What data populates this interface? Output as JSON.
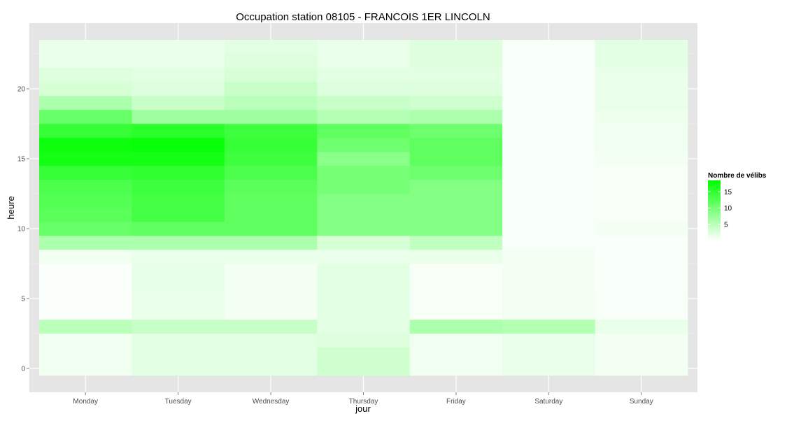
{
  "chart_data": {
    "type": "heatmap",
    "title": "Occupation station 08105 - FRANCOIS 1ER LINCOLN",
    "xlabel": "jour",
    "ylabel": "heure",
    "x_categories": [
      "Monday",
      "Tuesday",
      "Wednesday",
      "Thursday",
      "Friday",
      "Saturday",
      "Sunday"
    ],
    "y_hours": [
      0,
      1,
      2,
      3,
      4,
      5,
      6,
      7,
      8,
      9,
      10,
      11,
      12,
      13,
      14,
      15,
      16,
      17,
      18,
      19,
      20,
      21,
      22,
      23
    ],
    "y_ticks": [
      0,
      5,
      10,
      15,
      20
    ],
    "ylim": [
      -0.5,
      23.5
    ],
    "grid": true,
    "legend": {
      "title": "Nombre de vélibs",
      "ticks": [
        5,
        10,
        15
      ],
      "range": [
        0,
        18.5
      ],
      "color_low": "#ffffff",
      "color_high": "#00ff00",
      "position": "right"
    },
    "values": {
      "Monday": [
        1,
        1,
        1,
        5,
        0.3,
        0.3,
        0.3,
        0.3,
        1,
        6,
        11,
        12,
        12.5,
        13,
        14.5,
        17,
        17.5,
        14.5,
        11,
        6,
        3,
        2.5,
        1.5,
        1.5
      ],
      "Tuesday": [
        2,
        2,
        2,
        4,
        1.5,
        1.5,
        1.8,
        1.8,
        1.5,
        6,
        11.5,
        13.5,
        13.5,
        14,
        15,
        17,
        18,
        15.5,
        7,
        4,
        2.5,
        2,
        1.5,
        1.5
      ],
      "Wednesday": [
        2,
        2,
        2,
        4,
        0.8,
        0.8,
        0.8,
        0.8,
        1.5,
        6,
        11.5,
        11.5,
        11.5,
        12,
        13,
        14,
        14.5,
        14,
        7,
        5,
        4,
        3,
        2.5,
        2
      ],
      "Thursday": [
        3.5,
        3.5,
        2.5,
        2,
        2,
        2,
        2,
        2,
        1.5,
        3,
        9,
        9,
        9,
        10,
        10,
        8.5,
        10.5,
        11.5,
        5.5,
        4,
        2.5,
        2,
        1.5,
        1.5
      ],
      "Friday": [
        1,
        1,
        1,
        6,
        0.6,
        0.6,
        0.6,
        0.6,
        1.5,
        4.5,
        9,
        9,
        9,
        9,
        10.5,
        11.5,
        11.5,
        10.5,
        6,
        3.5,
        2.5,
        2,
        2.5,
        2.5
      ],
      "Saturday": [
        1.5,
        1.5,
        1.5,
        5.5,
        0.8,
        0.8,
        0.8,
        0.8,
        0.8,
        0.5,
        0.5,
        0.5,
        0.5,
        0.5,
        0.5,
        0.5,
        0.5,
        0.5,
        0.5,
        0.5,
        0.5,
        0.5,
        0.5,
        0.5
      ],
      "Sunday": [
        0.8,
        0.8,
        0.8,
        1.5,
        0.5,
        0.5,
        0.4,
        0.4,
        0.4,
        0.4,
        0.8,
        0.6,
        0.6,
        0.6,
        0.6,
        0.8,
        1,
        1,
        1.2,
        1.5,
        1.5,
        1.5,
        2,
        2
      ]
    }
  }
}
